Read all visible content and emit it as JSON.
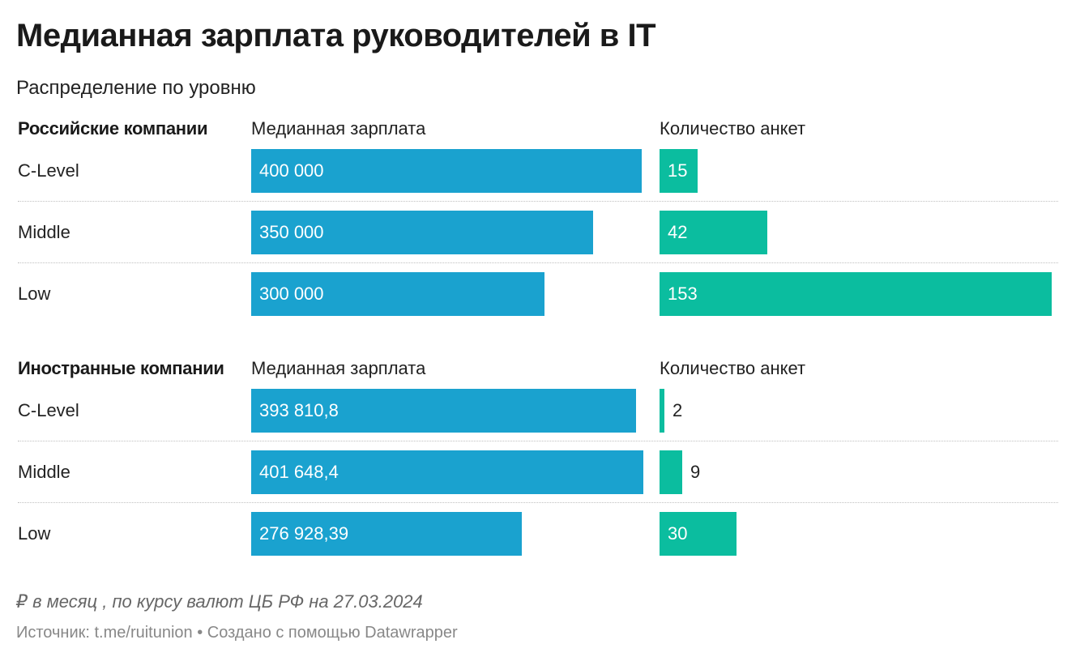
{
  "title": "Медианная зарплата руководителей в IT",
  "subtitle": "Распределение по уровню",
  "note": "₽ в месяц , по курсу валют ЦБ РФ на 27.03.2024",
  "footer": "Источник: t.me/ruitunion • Создано с помощью Datawrapper",
  "colors": {
    "salary": "#1aa2cf",
    "count": "#0bbd9f"
  },
  "chart_data": [
    {
      "type": "bar",
      "orientation": "horizontal",
      "title": "Российские компании",
      "categories": [
        "C-Level",
        "Middle",
        "Low"
      ],
      "series": [
        {
          "name": "Медианная зарплата",
          "values": [
            400000,
            350000,
            300000
          ],
          "labels": [
            "400 000",
            "350 000",
            "300 000"
          ]
        },
        {
          "name": "Количество анкет",
          "values": [
            15,
            42,
            153
          ],
          "labels": [
            "15",
            "42",
            "153"
          ]
        }
      ]
    },
    {
      "type": "bar",
      "orientation": "horizontal",
      "title": "Иностранные компании",
      "categories": [
        "C-Level",
        "Middle",
        "Low"
      ],
      "series": [
        {
          "name": "Медианная зарплата",
          "values": [
            393810.8,
            401648.4,
            276928.39
          ],
          "labels": [
            "393 810,8",
            "401 648,4",
            "276 928,39"
          ]
        },
        {
          "name": "Количество анкет",
          "values": [
            2,
            9,
            30
          ],
          "labels": [
            "2",
            "9",
            "30"
          ]
        }
      ]
    }
  ]
}
